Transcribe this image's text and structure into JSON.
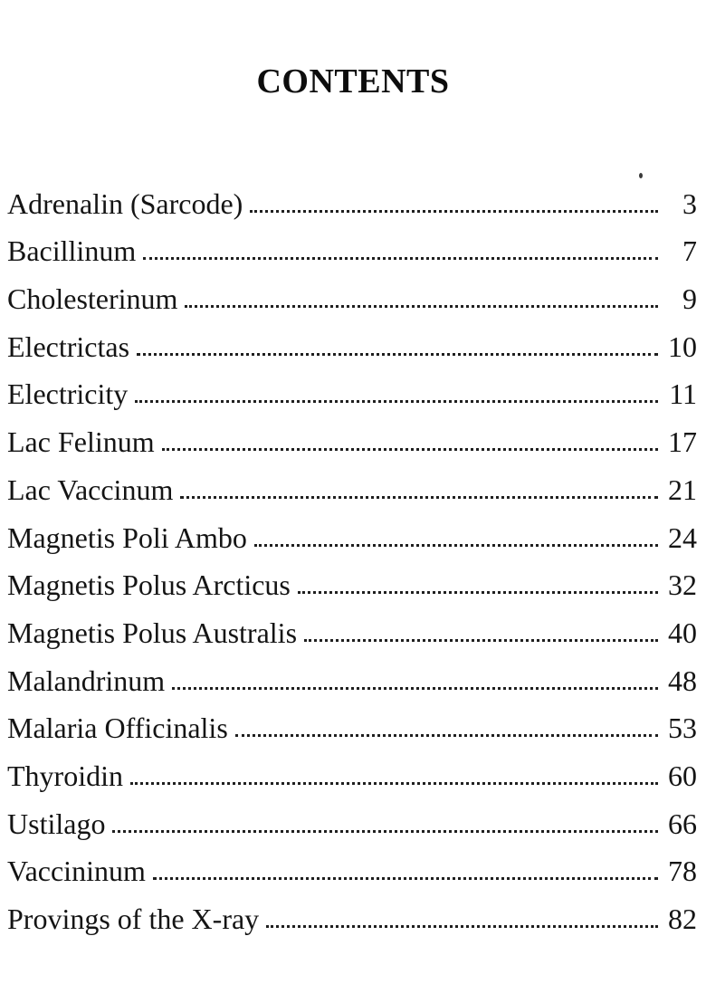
{
  "page": {
    "title": "CONTENTS"
  },
  "entries": [
    {
      "title": "Adrenalin (Sarcode)",
      "page": "3"
    },
    {
      "title": "Bacillinum",
      "page": "7"
    },
    {
      "title": "Cholesterinum",
      "page": "9"
    },
    {
      "title": "Electrictas",
      "page": "10"
    },
    {
      "title": "Electricity",
      "page": "11"
    },
    {
      "title": "Lac Felinum",
      "page": "17"
    },
    {
      "title": "Lac Vaccinum",
      "page": "21"
    },
    {
      "title": "Magnetis Poli Ambo",
      "page": "24"
    },
    {
      "title": "Magnetis Polus Arcticus",
      "page": "32"
    },
    {
      "title": "Magnetis Polus Australis",
      "page": "40"
    },
    {
      "title": "Malandrinum",
      "page": "48"
    },
    {
      "title": "Malaria Officinalis",
      "page": "53"
    },
    {
      "title": "Thyroidin",
      "page": "60"
    },
    {
      "title": "Ustilago",
      "page": "66"
    },
    {
      "title": "Vaccininum",
      "page": "78"
    },
    {
      "title": "Provings of the X-ray",
      "page": "82"
    }
  ],
  "colors": {
    "background": "#ffffff",
    "text": "#141414",
    "leader_dots": "#1f1f1f"
  }
}
